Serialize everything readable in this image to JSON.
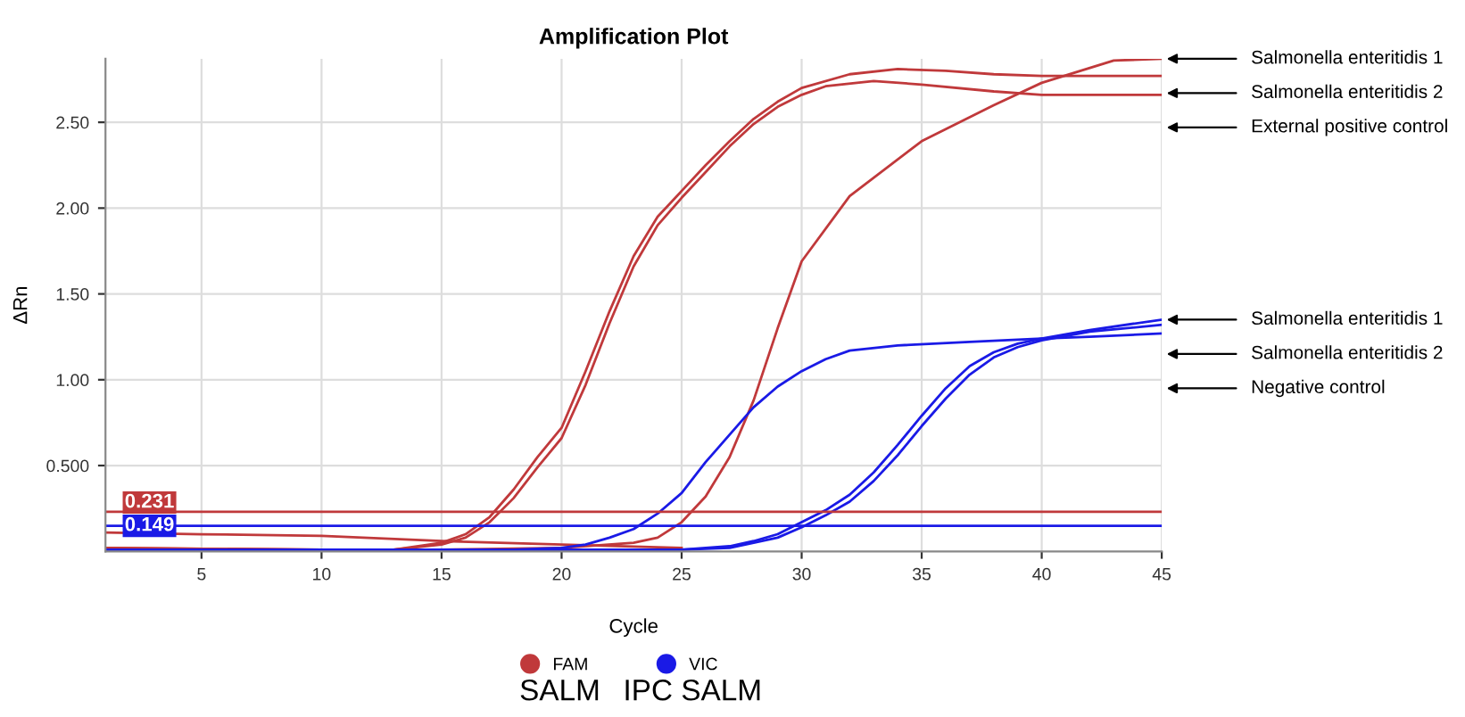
{
  "chart_data": {
    "type": "line",
    "title": "Amplification Plot",
    "xlabel": "Cycle",
    "ylabel": "ΔRn",
    "xlim": [
      1,
      45
    ],
    "ylim": [
      0,
      2.87
    ],
    "xticks": [
      5,
      10,
      15,
      20,
      25,
      30,
      35,
      40,
      45
    ],
    "yticks": [
      {
        "value": 0.5,
        "label": "0.500"
      },
      {
        "value": 1.0,
        "label": "1.00"
      },
      {
        "value": 1.5,
        "label": "1.50"
      },
      {
        "value": 2.0,
        "label": "2.00"
      },
      {
        "value": 2.5,
        "label": "2.50"
      }
    ],
    "grid": true,
    "legend": "bottom",
    "marker": "none",
    "line_style": "solid",
    "series": [
      {
        "name": "FAM",
        "color": "#c0393b",
        "x": [
          1,
          10,
          13,
          15,
          16,
          17,
          18,
          19,
          20,
          21,
          22,
          23,
          24,
          25,
          26,
          27,
          28,
          29,
          30,
          32,
          34,
          36,
          38,
          40,
          42,
          45
        ],
        "values": [
          0.02,
          0.01,
          0.01,
          0.05,
          0.1,
          0.2,
          0.36,
          0.55,
          0.72,
          1.05,
          1.4,
          1.72,
          1.95,
          2.1,
          2.25,
          2.39,
          2.52,
          2.62,
          2.7,
          2.78,
          2.81,
          2.8,
          2.78,
          2.77,
          2.77,
          2.77
        ]
      },
      {
        "color": "#c0393b",
        "x": [
          1,
          10,
          13,
          15,
          16,
          17,
          18,
          19,
          20,
          21,
          22,
          23,
          24,
          25,
          26,
          27,
          28,
          29,
          30,
          31,
          33,
          35,
          38,
          40,
          42,
          45
        ],
        "values": [
          0.02,
          0.01,
          0.01,
          0.04,
          0.08,
          0.17,
          0.31,
          0.49,
          0.66,
          0.97,
          1.33,
          1.66,
          1.9,
          2.06,
          2.21,
          2.36,
          2.49,
          2.59,
          2.66,
          2.71,
          2.74,
          2.72,
          2.68,
          2.66,
          2.66,
          2.66
        ]
      },
      {
        "color": "#c0393b",
        "x": [
          1,
          15,
          20,
          23,
          24,
          25,
          26,
          27,
          28,
          29,
          30,
          32,
          35,
          38,
          40,
          43,
          45
        ],
        "values": [
          0.01,
          0.01,
          0.02,
          0.05,
          0.08,
          0.17,
          0.32,
          0.55,
          0.88,
          1.3,
          1.69,
          2.07,
          2.39,
          2.6,
          2.73,
          2.86,
          2.87
        ]
      },
      {
        "color": "#c0393b",
        "x": [
          1,
          5,
          10,
          15,
          20,
          25
        ],
        "values": [
          0.11,
          0.1,
          0.09,
          0.06,
          0.04,
          0.02
        ]
      },
      {
        "name": "VIC",
        "color": "#1a1ae6",
        "x": [
          1,
          10,
          18,
          20,
          21,
          22,
          23,
          24,
          25,
          26,
          27,
          28,
          29,
          30,
          31,
          32,
          34,
          37,
          40,
          42,
          45
        ],
        "values": [
          0.01,
          0.01,
          0.01,
          0.02,
          0.04,
          0.08,
          0.13,
          0.22,
          0.34,
          0.52,
          0.68,
          0.84,
          0.96,
          1.05,
          1.12,
          1.17,
          1.2,
          1.22,
          1.24,
          1.25,
          1.27
        ]
      },
      {
        "color": "#1a1ae6",
        "x": [
          1,
          20,
          25,
          27,
          28,
          29,
          30,
          31,
          32,
          33,
          34,
          35,
          36,
          37,
          38,
          39,
          40,
          42,
          45
        ],
        "values": [
          0.01,
          0.01,
          0.01,
          0.03,
          0.06,
          0.1,
          0.17,
          0.24,
          0.33,
          0.46,
          0.62,
          0.79,
          0.95,
          1.08,
          1.16,
          1.21,
          1.24,
          1.29,
          1.35
        ]
      },
      {
        "color": "#1a1ae6",
        "x": [
          1,
          20,
          25,
          27,
          28,
          29,
          30,
          31,
          32,
          33,
          34,
          35,
          36,
          37,
          38,
          39,
          40,
          42,
          45
        ],
        "values": [
          0.01,
          0.01,
          0.01,
          0.02,
          0.05,
          0.08,
          0.14,
          0.21,
          0.29,
          0.41,
          0.56,
          0.73,
          0.89,
          1.03,
          1.13,
          1.19,
          1.23,
          1.28,
          1.32
        ]
      }
    ],
    "ref_lines": [
      {
        "axis": "y",
        "value": 0.231,
        "label": "0.231",
        "color": "#c0393b"
      },
      {
        "axis": "y",
        "value": 0.149,
        "label": "0.149",
        "color": "#1a1ae6"
      }
    ],
    "annotations": [
      "Salmonella enteritidis 1",
      "Salmonella enteritidis 2",
      "External positive control",
      "Salmonella enteritidis 1",
      "Salmonella enteritidis 2",
      "Negative control",
      "SALM",
      "IPC SALM"
    ]
  }
}
